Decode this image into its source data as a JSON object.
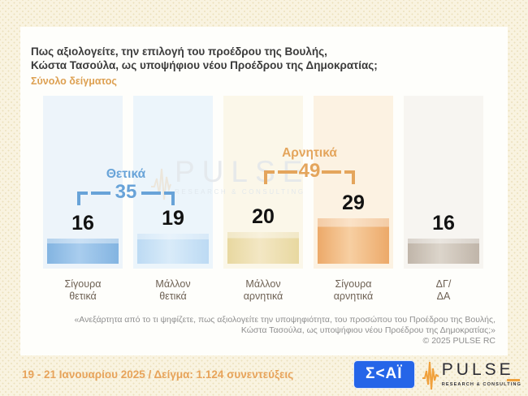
{
  "header": {
    "title_line1": "Πως αξιολογείτε, την επιλογή του προέδρου της Βουλής,",
    "title_line2": "Κώστα Τασούλα, ως υποψήφιου νέου Προέδρου της Δημοκρατίας;",
    "subtitle": "Σύνολο δείγματος"
  },
  "chart_data": {
    "type": "bar",
    "title": "Πως αξιολογείτε, την επιλογή του προέδρου της Βουλής, Κώστα Τασούλα, ως υποψήφιου νέου Προέδρου της Δημοκρατίας;",
    "subtitle": "Σύνολο δείγματος",
    "categories": [
      "Σίγουρα θετικά",
      "Μάλλον θετικά",
      "Μάλλον αρνητικά",
      "Σίγουρα αρνητικά",
      "ΔΓ/ΔΑ"
    ],
    "category_lines": [
      [
        "Σίγουρα",
        "θετικά"
      ],
      [
        "Μάλλον",
        "θετικά"
      ],
      [
        "Μάλλον",
        "αρνητικά"
      ],
      [
        "Σίγουρα",
        "αρνητικά"
      ],
      [
        "ΔΓ/",
        "ΔΑ"
      ]
    ],
    "values": [
      16,
      19,
      20,
      29,
      16
    ],
    "bar_colors": [
      "#83b4e1",
      "#bcdaf3",
      "#e8d8a0",
      "#eca969",
      "#c0b5a9"
    ],
    "column_bg_colors": [
      "#edf4fa",
      "#ecf5fb",
      "#fbf7e9",
      "#fcf2e2",
      "#f7f5f1"
    ],
    "groups": [
      {
        "label": "Θετικά",
        "value": 35,
        "color": "#68a3d8",
        "spans_categories": [
          0,
          1
        ]
      },
      {
        "label": "Αρνητικά",
        "value": 49,
        "color": "#e4a55c",
        "spans_categories": [
          2,
          3
        ]
      }
    ],
    "xlabel": "",
    "ylabel": "",
    "legend": false,
    "grid": false,
    "axes_shown": false
  },
  "watermark": {
    "text": "PULSE",
    "subtext": "RESEARCH & CONSULTING"
  },
  "footnote": {
    "line1": "«Ανεξάρτητα από το τι ψηφίζετε, πως αξιολογείτε την υποψηφιότητα, του προσώπου του Προέδρου της Βουλής,",
    "line2": "Κώστα Τασούλα, ως υποψήφιου νέου Προέδρου της Δημοκρατίας;»",
    "copyright": "© 2025 PULSE RC"
  },
  "footer": {
    "date_sample": "19 - 21 Ιανουαρίου 2025  /  Δείγμα:  1.124 συνεντεύξεις",
    "skai_text": "Σ<ΑΪ",
    "pulse_name": "PULSE",
    "pulse_tagline": "RESEARCH & CONSULTING"
  },
  "colors": {
    "accent_orange": "#e7a35a",
    "accent_blue": "#68a3d8",
    "skai_blue": "#2565e8",
    "page_background": "#f9f3e0"
  }
}
